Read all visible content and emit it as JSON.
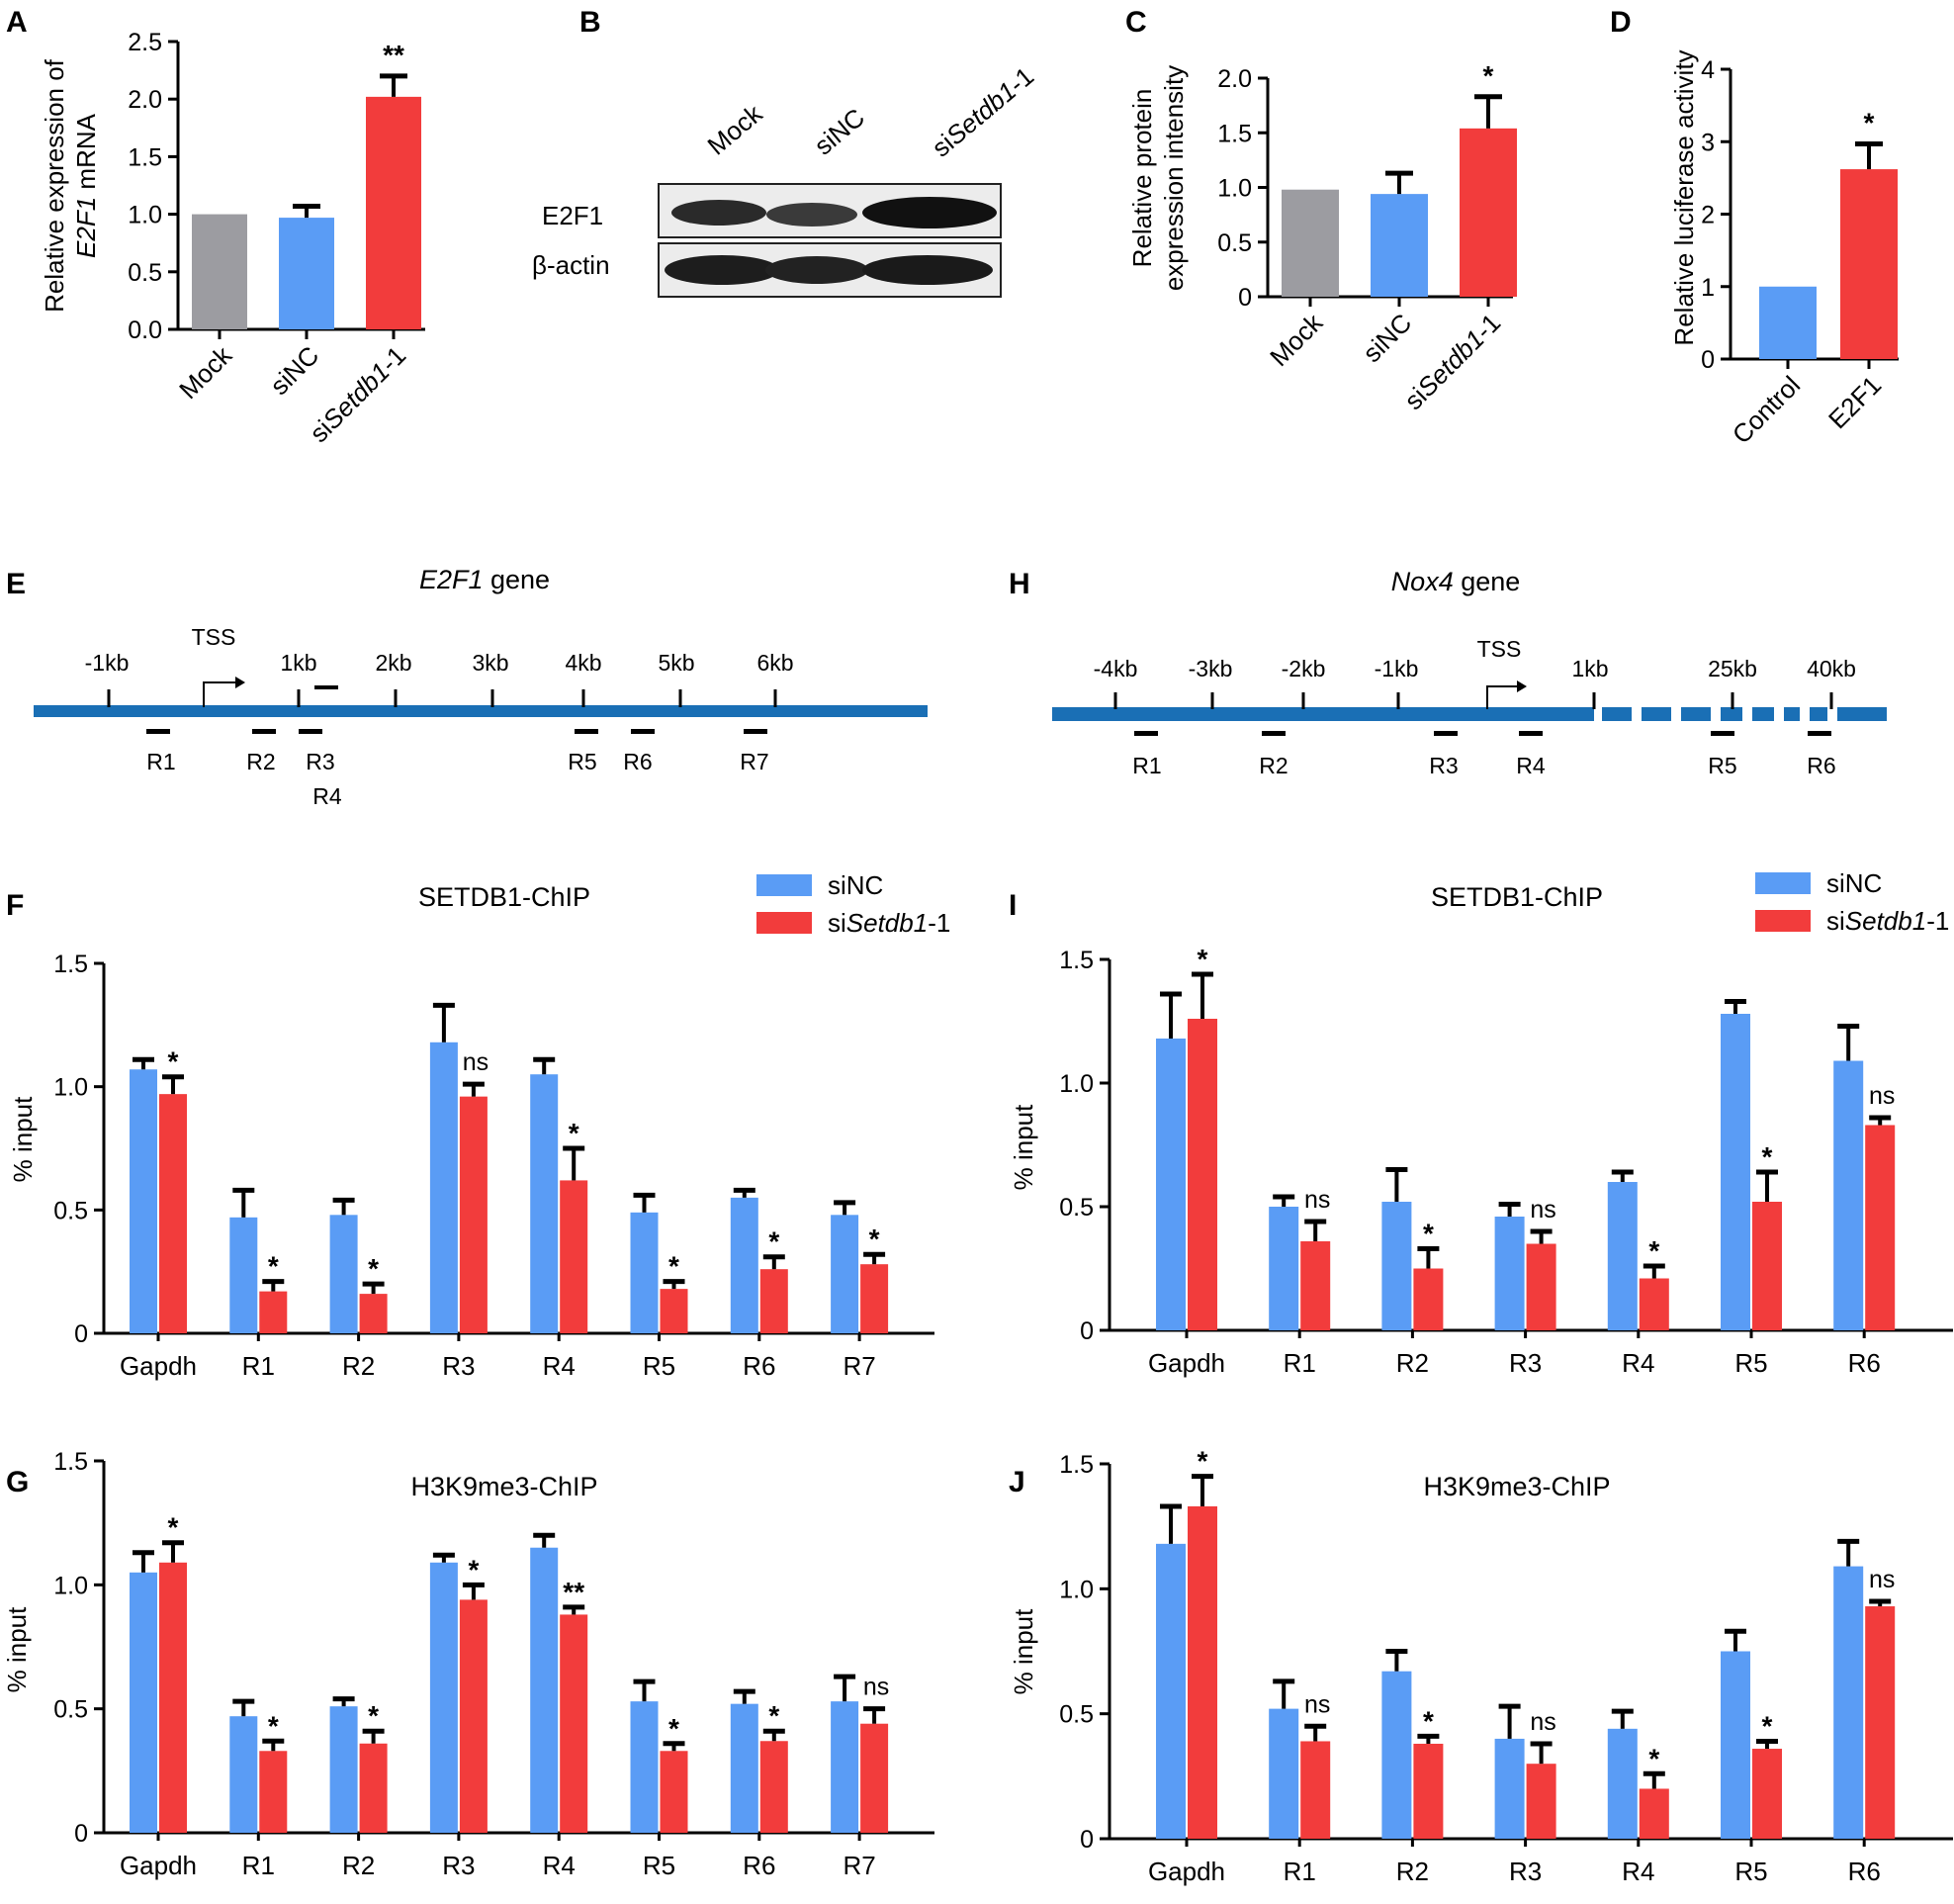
{
  "colors": {
    "gray": "#9c9ca1",
    "blue": "#5a9cf5",
    "red": "#f23c3c",
    "track": "#1a6fb5"
  },
  "panels": {
    "A": "A",
    "B": "B",
    "C": "C",
    "D": "D",
    "E": "E",
    "F": "F",
    "G": "G",
    "H": "H",
    "I": "I",
    "J": "J"
  },
  "blot": {
    "lanes": [
      "Mock",
      "siNC",
      "siSetdb1-1"
    ],
    "rows": [
      "E2F1",
      "β-actin"
    ]
  },
  "geneE": {
    "title": "E2F1 gene",
    "tss": "TSS",
    "ticks": [
      "-1kb",
      "1kb",
      "2kb",
      "3kb",
      "4kb",
      "5kb",
      "6kb"
    ],
    "regions": [
      "R1",
      "R2",
      "R3",
      "R4",
      "R5",
      "R6",
      "R7"
    ]
  },
  "geneH": {
    "title": "Nox4 gene",
    "tss": "TSS",
    "ticks": [
      "-4kb",
      "-3kb",
      "-2kb",
      "-1kb",
      "1kb",
      "25kb",
      "40kb"
    ],
    "regions": [
      "R1",
      "R2",
      "R3",
      "R4",
      "R5",
      "R6"
    ]
  },
  "chart_data": [
    {
      "id": "A",
      "type": "bar",
      "ylabel": "Relative expression of E2F1 mRNA",
      "categories": [
        "Mock",
        "siNC",
        "siSetdb1-1"
      ],
      "values": [
        1.0,
        0.97,
        2.02
      ],
      "errors": [
        0,
        0.1,
        0.18
      ],
      "bar_colors": [
        "gray",
        "blue",
        "red"
      ],
      "significance": [
        "",
        "",
        "**"
      ],
      "ylim": [
        0,
        2.5
      ],
      "yticks": [
        "0.0",
        "0.5",
        "1.0",
        "1.5",
        "2.0",
        "2.5"
      ]
    },
    {
      "id": "C",
      "type": "bar",
      "ylabel": "Relative protein expression intensity",
      "categories": [
        "Mock",
        "siNC",
        "siSetdb1-1"
      ],
      "values": [
        0.98,
        0.94,
        1.54
      ],
      "errors": [
        0,
        0.19,
        0.29
      ],
      "bar_colors": [
        "gray",
        "blue",
        "red"
      ],
      "significance": [
        "",
        "",
        "*"
      ],
      "ylim": [
        0,
        2.0
      ],
      "yticks": [
        "0",
        "0.5",
        "1.0",
        "1.5",
        "2.0"
      ]
    },
    {
      "id": "D",
      "type": "bar",
      "ylabel": "Relative luciferase activity",
      "categories": [
        "Control",
        "E2F1"
      ],
      "values": [
        1.0,
        2.62
      ],
      "errors": [
        0,
        0.35
      ],
      "bar_colors": [
        "blue",
        "red"
      ],
      "significance": [
        "",
        "*"
      ],
      "ylim": [
        0,
        4
      ],
      "yticks": [
        "0",
        "1",
        "2",
        "3",
        "4"
      ]
    },
    {
      "id": "F",
      "type": "bar",
      "title": "SETDB1-ChIP",
      "ylabel": "% input",
      "categories": [
        "Gapdh",
        "R1",
        "R2",
        "R3",
        "R4",
        "R5",
        "R6",
        "R7"
      ],
      "series": [
        {
          "name": "siNC",
          "values": [
            1.07,
            0.47,
            0.48,
            1.18,
            1.05,
            0.49,
            0.55,
            0.48
          ],
          "errors": [
            0.04,
            0.11,
            0.06,
            0.15,
            0.06,
            0.07,
            0.03,
            0.05
          ]
        },
        {
          "name": "siSetdb1-1",
          "values": [
            0.97,
            0.17,
            0.16,
            0.96,
            0.62,
            0.18,
            0.26,
            0.28
          ],
          "errors": [
            0.07,
            0.04,
            0.04,
            0.05,
            0.13,
            0.03,
            0.05,
            0.04
          ]
        }
      ],
      "significance": [
        "*",
        "*",
        "*",
        "ns",
        "*",
        "*",
        "*",
        "*"
      ],
      "ylim": [
        0,
        1.5
      ],
      "yticks": [
        "0",
        "0.5",
        "1.0",
        "1.5"
      ],
      "legend": "top-right"
    },
    {
      "id": "G",
      "type": "bar",
      "title": "H3K9me3-ChIP",
      "ylabel": "% input",
      "categories": [
        "Gapdh",
        "R1",
        "R2",
        "R3",
        "R4",
        "R5",
        "R6",
        "R7"
      ],
      "series": [
        {
          "name": "siNC",
          "values": [
            1.05,
            0.47,
            0.51,
            1.09,
            1.15,
            0.53,
            0.52,
            0.53
          ],
          "errors": [
            0.08,
            0.06,
            0.03,
            0.03,
            0.05,
            0.08,
            0.05,
            0.1
          ]
        },
        {
          "name": "siSetdb1-1",
          "values": [
            1.09,
            0.33,
            0.36,
            0.94,
            0.88,
            0.33,
            0.37,
            0.44
          ],
          "errors": [
            0.08,
            0.04,
            0.05,
            0.06,
            0.03,
            0.03,
            0.04,
            0.06
          ]
        }
      ],
      "significance": [
        "*",
        "*",
        "*",
        "*",
        "**",
        "*",
        "*",
        "ns"
      ],
      "ylim": [
        0,
        1.5
      ],
      "yticks": [
        "0",
        "0.5",
        "1.0",
        "1.5"
      ]
    },
    {
      "id": "I",
      "type": "bar",
      "title": "SETDB1-ChIP",
      "ylabel": "% input",
      "categories": [
        "Gapdh",
        "R1",
        "R2",
        "R3",
        "R4",
        "R5",
        "R6"
      ],
      "series": [
        {
          "name": "siNC",
          "values": [
            1.18,
            0.5,
            0.52,
            0.46,
            0.6,
            1.28,
            1.09
          ],
          "errors": [
            0.18,
            0.04,
            0.13,
            0.05,
            0.04,
            0.05,
            0.14
          ]
        },
        {
          "name": "siSetdb1-1",
          "values": [
            1.26,
            0.36,
            0.25,
            0.35,
            0.21,
            0.52,
            0.83
          ],
          "errors": [
            0.18,
            0.08,
            0.08,
            0.05,
            0.05,
            0.12,
            0.03
          ]
        }
      ],
      "significance": [
        "*",
        "ns",
        "*",
        "ns",
        "*",
        "*",
        "ns"
      ],
      "ylim": [
        0,
        1.5
      ],
      "yticks": [
        "0",
        "0.5",
        "1.0",
        "1.5"
      ],
      "legend": "top-right"
    },
    {
      "id": "J",
      "type": "bar",
      "title": "H3K9me3-ChIP",
      "ylabel": "% input",
      "categories": [
        "Gapdh",
        "R1",
        "R2",
        "R3",
        "R4",
        "R5",
        "R6"
      ],
      "series": [
        {
          "name": "siNC",
          "values": [
            1.18,
            0.52,
            0.67,
            0.4,
            0.44,
            0.75,
            1.09
          ],
          "errors": [
            0.15,
            0.11,
            0.08,
            0.13,
            0.07,
            0.08,
            0.1
          ]
        },
        {
          "name": "siSetdb1-1",
          "values": [
            1.33,
            0.39,
            0.38,
            0.3,
            0.2,
            0.36,
            0.93
          ],
          "errors": [
            0.12,
            0.06,
            0.03,
            0.08,
            0.06,
            0.03,
            0.02
          ]
        }
      ],
      "significance": [
        "*",
        "ns",
        "*",
        "ns",
        "*",
        "*",
        "ns"
      ],
      "ylim": [
        0,
        1.5
      ],
      "yticks": [
        "0",
        "0.5",
        "1.0",
        "1.5"
      ]
    }
  ]
}
